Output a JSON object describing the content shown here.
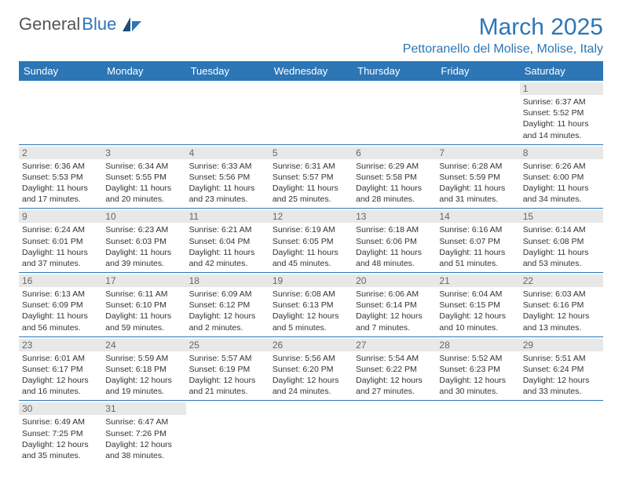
{
  "logo": {
    "general": "General",
    "blue": "Blue"
  },
  "month_title": "March 2025",
  "location": "Pettoranello del Molise, Molise, Italy",
  "colors": {
    "brand_blue": "#2d76b6",
    "header_text": "#ffffff",
    "daynum_bg": "#e8e8e8",
    "daynum_text": "#666666",
    "body_text": "#333333",
    "background": "#ffffff"
  },
  "weekdays": [
    "Sunday",
    "Monday",
    "Tuesday",
    "Wednesday",
    "Thursday",
    "Friday",
    "Saturday"
  ],
  "weeks": [
    [
      {
        "blank": true
      },
      {
        "blank": true
      },
      {
        "blank": true
      },
      {
        "blank": true
      },
      {
        "blank": true
      },
      {
        "blank": true
      },
      {
        "n": "1",
        "sunrise": "6:37 AM",
        "sunset": "5:52 PM",
        "daylight": "11 hours and 14 minutes."
      }
    ],
    [
      {
        "n": "2",
        "sunrise": "6:36 AM",
        "sunset": "5:53 PM",
        "daylight": "11 hours and 17 minutes."
      },
      {
        "n": "3",
        "sunrise": "6:34 AM",
        "sunset": "5:55 PM",
        "daylight": "11 hours and 20 minutes."
      },
      {
        "n": "4",
        "sunrise": "6:33 AM",
        "sunset": "5:56 PM",
        "daylight": "11 hours and 23 minutes."
      },
      {
        "n": "5",
        "sunrise": "6:31 AM",
        "sunset": "5:57 PM",
        "daylight": "11 hours and 25 minutes."
      },
      {
        "n": "6",
        "sunrise": "6:29 AM",
        "sunset": "5:58 PM",
        "daylight": "11 hours and 28 minutes."
      },
      {
        "n": "7",
        "sunrise": "6:28 AM",
        "sunset": "5:59 PM",
        "daylight": "11 hours and 31 minutes."
      },
      {
        "n": "8",
        "sunrise": "6:26 AM",
        "sunset": "6:00 PM",
        "daylight": "11 hours and 34 minutes."
      }
    ],
    [
      {
        "n": "9",
        "sunrise": "6:24 AM",
        "sunset": "6:01 PM",
        "daylight": "11 hours and 37 minutes."
      },
      {
        "n": "10",
        "sunrise": "6:23 AM",
        "sunset": "6:03 PM",
        "daylight": "11 hours and 39 minutes."
      },
      {
        "n": "11",
        "sunrise": "6:21 AM",
        "sunset": "6:04 PM",
        "daylight": "11 hours and 42 minutes."
      },
      {
        "n": "12",
        "sunrise": "6:19 AM",
        "sunset": "6:05 PM",
        "daylight": "11 hours and 45 minutes."
      },
      {
        "n": "13",
        "sunrise": "6:18 AM",
        "sunset": "6:06 PM",
        "daylight": "11 hours and 48 minutes."
      },
      {
        "n": "14",
        "sunrise": "6:16 AM",
        "sunset": "6:07 PM",
        "daylight": "11 hours and 51 minutes."
      },
      {
        "n": "15",
        "sunrise": "6:14 AM",
        "sunset": "6:08 PM",
        "daylight": "11 hours and 53 minutes."
      }
    ],
    [
      {
        "n": "16",
        "sunrise": "6:13 AM",
        "sunset": "6:09 PM",
        "daylight": "11 hours and 56 minutes."
      },
      {
        "n": "17",
        "sunrise": "6:11 AM",
        "sunset": "6:10 PM",
        "daylight": "11 hours and 59 minutes."
      },
      {
        "n": "18",
        "sunrise": "6:09 AM",
        "sunset": "6:12 PM",
        "daylight": "12 hours and 2 minutes."
      },
      {
        "n": "19",
        "sunrise": "6:08 AM",
        "sunset": "6:13 PM",
        "daylight": "12 hours and 5 minutes."
      },
      {
        "n": "20",
        "sunrise": "6:06 AM",
        "sunset": "6:14 PM",
        "daylight": "12 hours and 7 minutes."
      },
      {
        "n": "21",
        "sunrise": "6:04 AM",
        "sunset": "6:15 PM",
        "daylight": "12 hours and 10 minutes."
      },
      {
        "n": "22",
        "sunrise": "6:03 AM",
        "sunset": "6:16 PM",
        "daylight": "12 hours and 13 minutes."
      }
    ],
    [
      {
        "n": "23",
        "sunrise": "6:01 AM",
        "sunset": "6:17 PM",
        "daylight": "12 hours and 16 minutes."
      },
      {
        "n": "24",
        "sunrise": "5:59 AM",
        "sunset": "6:18 PM",
        "daylight": "12 hours and 19 minutes."
      },
      {
        "n": "25",
        "sunrise": "5:57 AM",
        "sunset": "6:19 PM",
        "daylight": "12 hours and 21 minutes."
      },
      {
        "n": "26",
        "sunrise": "5:56 AM",
        "sunset": "6:20 PM",
        "daylight": "12 hours and 24 minutes."
      },
      {
        "n": "27",
        "sunrise": "5:54 AM",
        "sunset": "6:22 PM",
        "daylight": "12 hours and 27 minutes."
      },
      {
        "n": "28",
        "sunrise": "5:52 AM",
        "sunset": "6:23 PM",
        "daylight": "12 hours and 30 minutes."
      },
      {
        "n": "29",
        "sunrise": "5:51 AM",
        "sunset": "6:24 PM",
        "daylight": "12 hours and 33 minutes."
      }
    ],
    [
      {
        "n": "30",
        "sunrise": "6:49 AM",
        "sunset": "7:25 PM",
        "daylight": "12 hours and 35 minutes."
      },
      {
        "n": "31",
        "sunrise": "6:47 AM",
        "sunset": "7:26 PM",
        "daylight": "12 hours and 38 minutes."
      },
      {
        "blank": true
      },
      {
        "blank": true
      },
      {
        "blank": true
      },
      {
        "blank": true
      },
      {
        "blank": true
      }
    ]
  ],
  "labels": {
    "sunrise": "Sunrise:",
    "sunset": "Sunset:",
    "daylight": "Daylight:"
  }
}
